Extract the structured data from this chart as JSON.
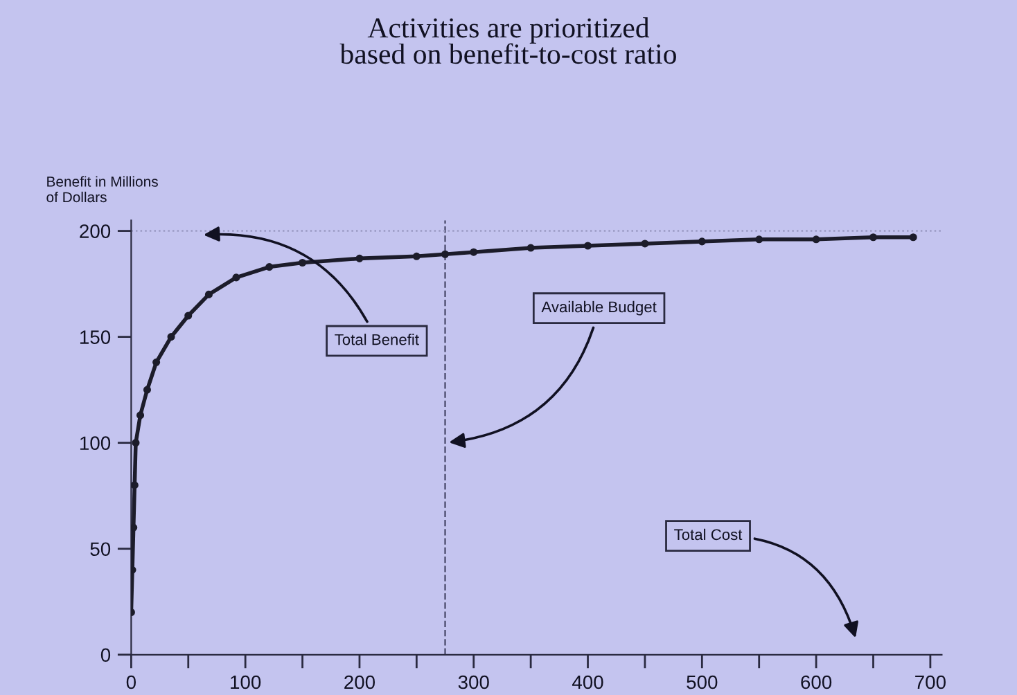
{
  "chart_data": {
    "type": "line",
    "title": "Activities are prioritized\nbased on benefit-to-cost ratio",
    "ylabel": "Benefit in Millions\nof Dollars",
    "x": [
      0,
      1,
      2,
      3,
      4,
      8,
      14,
      22,
      35,
      50,
      68,
      92,
      121,
      150,
      200,
      250,
      275,
      300,
      350,
      400,
      450,
      500,
      550,
      600,
      650,
      685
    ],
    "series": [
      {
        "color": "#1c1c2a",
        "values": [
          20,
          40,
          60,
          80,
          100,
          113,
          125,
          138,
          150,
          160,
          170,
          178,
          183,
          185,
          187,
          188,
          189,
          190,
          192,
          193,
          194,
          195,
          196,
          196,
          197,
          197
        ]
      }
    ],
    "marker": "circle",
    "line_style": "solid",
    "xlim": [
      0,
      710
    ],
    "ylim": [
      0,
      205
    ],
    "xticks": [
      0,
      {
        "value": 50,
        "label": null
      },
      100,
      {
        "value": 150,
        "label": null
      },
      200,
      {
        "value": 250,
        "label": null
      },
      300,
      {
        "value": 350,
        "label": null
      },
      400,
      {
        "value": 450,
        "label": null
      },
      500,
      {
        "value": 550,
        "label": null
      },
      600,
      {
        "value": 650,
        "label": null
      },
      700
    ],
    "yticks": [
      0,
      50,
      100,
      150,
      200
    ],
    "ref_lines": [
      {
        "axis": "x",
        "value": 275,
        "line_style": "dashed",
        "color": "#555577"
      },
      {
        "axis": "y",
        "value": 200,
        "line_style": "dotted",
        "color": "#9a9ac4"
      }
    ],
    "annotations": [
      {
        "text": "Total Benefit",
        "x": 60,
        "y": 198
      },
      {
        "text": "Available Budget",
        "x": 275,
        "y": 100
      },
      "Total Cost"
    ],
    "grid": false,
    "legend": false
  }
}
